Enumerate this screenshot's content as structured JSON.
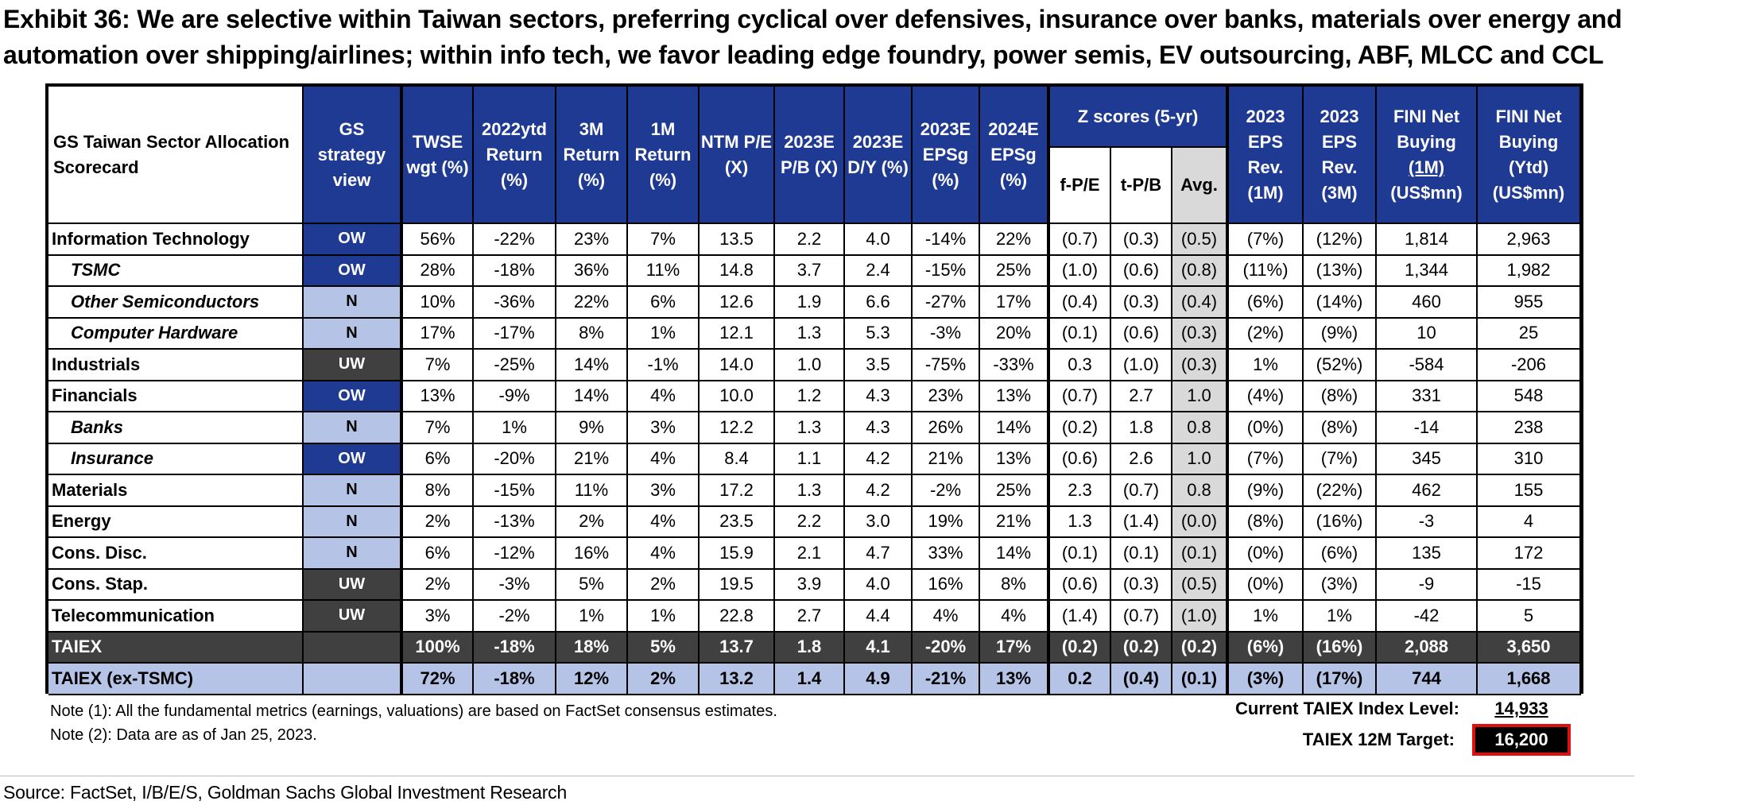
{
  "title": "Exhibit 36: We are selective within Taiwan sectors, preferring cyclical over defensives, insurance over banks, materials over energy and automation over shipping/airlines; within info tech, we favor leading edge foundry, power semis, EV outsourcing, ABF, MLCC and CCL",
  "header": {
    "scorecard": "GS Taiwan Sector Allocation Scorecard",
    "view": "GS strategy view",
    "twse": "TWSE wgt (%)",
    "ret_ytd": "2022ytd Return (%)",
    "ret_3m": "3M Return (%)",
    "ret_1m": "1M Return (%)",
    "pe": "NTM P/E (X)",
    "pb": "2023E P/B (X)",
    "dy": "2023E D/Y (%)",
    "epsg23": "2023E EPSg (%)",
    "epsg24": "2024E EPSg (%)",
    "zscores": "Z scores (5-yr)",
    "z_fpe": "f-P/E",
    "z_tpb": "t-P/B",
    "z_avg": "Avg.",
    "rev1m": "2023 EPS Rev. (1M)",
    "rev3m": "2023 EPS Rev. (3M)",
    "fini1m_a": "FINI Net Buying",
    "fini1m_u": "(1M)",
    "fini1m_b": "(US$mn)",
    "finiytd": "FINI Net Buying (Ytd) (US$mn)"
  },
  "rows": [
    {
      "name": "Information Technology",
      "sub": false,
      "view": "OW",
      "twse": "56%",
      "ytd": "-22%",
      "m3": "23%",
      "m1": "7%",
      "pe": "13.5",
      "pb": "2.2",
      "dy": "4.0",
      "e23": "-14%",
      "e24": "22%",
      "fpe": "(0.7)",
      "tpb": "(0.3)",
      "avg": "(0.5)",
      "r1": "(7%)",
      "r3": "(12%)",
      "f1": "1,814",
      "fy": "2,963"
    },
    {
      "name": "TSMC",
      "sub": true,
      "view": "OW",
      "twse": "28%",
      "ytd": "-18%",
      "m3": "36%",
      "m1": "11%",
      "pe": "14.8",
      "pb": "3.7",
      "dy": "2.4",
      "e23": "-15%",
      "e24": "25%",
      "fpe": "(1.0)",
      "tpb": "(0.6)",
      "avg": "(0.8)",
      "r1": "(11%)",
      "r3": "(13%)",
      "f1": "1,344",
      "fy": "1,982"
    },
    {
      "name": "Other Semiconductors",
      "sub": true,
      "view": "N",
      "twse": "10%",
      "ytd": "-36%",
      "m3": "22%",
      "m1": "6%",
      "pe": "12.6",
      "pb": "1.9",
      "dy": "6.6",
      "e23": "-27%",
      "e24": "17%",
      "fpe": "(0.4)",
      "tpb": "(0.3)",
      "avg": "(0.4)",
      "r1": "(6%)",
      "r3": "(14%)",
      "f1": "460",
      "fy": "955"
    },
    {
      "name": "Computer Hardware",
      "sub": true,
      "view": "N",
      "twse": "17%",
      "ytd": "-17%",
      "m3": "8%",
      "m1": "1%",
      "pe": "12.1",
      "pb": "1.3",
      "dy": "5.3",
      "e23": "-3%",
      "e24": "20%",
      "fpe": "(0.1)",
      "tpb": "(0.6)",
      "avg": "(0.3)",
      "r1": "(2%)",
      "r3": "(9%)",
      "f1": "10",
      "fy": "25"
    },
    {
      "name": "Industrials",
      "sub": false,
      "view": "UW",
      "twse": "7%",
      "ytd": "-25%",
      "m3": "14%",
      "m1": "-1%",
      "pe": "14.0",
      "pb": "1.0",
      "dy": "3.5",
      "e23": "-75%",
      "e24": "-33%",
      "fpe": "0.3",
      "tpb": "(1.0)",
      "avg": "(0.3)",
      "r1": "1%",
      "r3": "(52%)",
      "f1": "-584",
      "fy": "-206"
    },
    {
      "name": "Financials",
      "sub": false,
      "view": "OW",
      "twse": "13%",
      "ytd": "-9%",
      "m3": "14%",
      "m1": "4%",
      "pe": "10.0",
      "pb": "1.2",
      "dy": "4.3",
      "e23": "23%",
      "e24": "13%",
      "fpe": "(0.7)",
      "tpb": "2.7",
      "avg": "1.0",
      "r1": "(4%)",
      "r3": "(8%)",
      "f1": "331",
      "fy": "548"
    },
    {
      "name": "Banks",
      "sub": true,
      "view": "N",
      "twse": "7%",
      "ytd": "1%",
      "m3": "9%",
      "m1": "3%",
      "pe": "12.2",
      "pb": "1.3",
      "dy": "4.3",
      "e23": "26%",
      "e24": "14%",
      "fpe": "(0.2)",
      "tpb": "1.8",
      "avg": "0.8",
      "r1": "(0%)",
      "r3": "(8%)",
      "f1": "-14",
      "fy": "238"
    },
    {
      "name": "Insurance",
      "sub": true,
      "view": "OW",
      "twse": "6%",
      "ytd": "-20%",
      "m3": "21%",
      "m1": "4%",
      "pe": "8.4",
      "pb": "1.1",
      "dy": "4.2",
      "e23": "21%",
      "e24": "13%",
      "fpe": "(0.6)",
      "tpb": "2.6",
      "avg": "1.0",
      "r1": "(7%)",
      "r3": "(7%)",
      "f1": "345",
      "fy": "310"
    },
    {
      "name": "Materials",
      "sub": false,
      "view": "N",
      "twse": "8%",
      "ytd": "-15%",
      "m3": "11%",
      "m1": "3%",
      "pe": "17.2",
      "pb": "1.3",
      "dy": "4.2",
      "e23": "-2%",
      "e24": "25%",
      "fpe": "2.3",
      "tpb": "(0.7)",
      "avg": "0.8",
      "r1": "(9%)",
      "r3": "(22%)",
      "f1": "462",
      "fy": "155"
    },
    {
      "name": "Energy",
      "sub": false,
      "view": "N",
      "twse": "2%",
      "ytd": "-13%",
      "m3": "2%",
      "m1": "4%",
      "pe": "23.5",
      "pb": "2.2",
      "dy": "3.0",
      "e23": "19%",
      "e24": "21%",
      "fpe": "1.3",
      "tpb": "(1.4)",
      "avg": "(0.0)",
      "r1": "(8%)",
      "r3": "(16%)",
      "f1": "-3",
      "fy": "4"
    },
    {
      "name": "Cons. Disc.",
      "sub": false,
      "view": "N",
      "twse": "6%",
      "ytd": "-12%",
      "m3": "16%",
      "m1": "4%",
      "pe": "15.9",
      "pb": "2.1",
      "dy": "4.7",
      "e23": "33%",
      "e24": "14%",
      "fpe": "(0.1)",
      "tpb": "(0.1)",
      "avg": "(0.1)",
      "r1": "(0%)",
      "r3": "(6%)",
      "f1": "135",
      "fy": "172"
    },
    {
      "name": "Cons. Stap.",
      "sub": false,
      "view": "UW",
      "twse": "2%",
      "ytd": "-3%",
      "m3": "5%",
      "m1": "2%",
      "pe": "19.5",
      "pb": "3.9",
      "dy": "4.0",
      "e23": "16%",
      "e24": "8%",
      "fpe": "(0.6)",
      "tpb": "(0.3)",
      "avg": "(0.5)",
      "r1": "(0%)",
      "r3": "(3%)",
      "f1": "-9",
      "fy": "-15"
    },
    {
      "name": "Telecommunication",
      "sub": false,
      "view": "UW",
      "twse": "3%",
      "ytd": "-2%",
      "m3": "1%",
      "m1": "1%",
      "pe": "22.8",
      "pb": "2.7",
      "dy": "4.4",
      "e23": "4%",
      "e24": "4%",
      "fpe": "(1.4)",
      "tpb": "(0.7)",
      "avg": "(1.0)",
      "r1": "1%",
      "r3": "1%",
      "f1": "-42",
      "fy": "5"
    },
    {
      "name": "TAIEX",
      "sub": false,
      "view": "",
      "twse": "100%",
      "ytd": "-18%",
      "m3": "18%",
      "m1": "5%",
      "pe": "13.7",
      "pb": "1.8",
      "dy": "4.1",
      "e23": "-20%",
      "e24": "17%",
      "fpe": "(0.2)",
      "tpb": "(0.2)",
      "avg": "(0.2)",
      "r1": "(6%)",
      "r3": "(16%)",
      "f1": "2,088",
      "fy": "3,650"
    },
    {
      "name": "TAIEX (ex-TSMC)",
      "sub": false,
      "view": "",
      "twse": "72%",
      "ytd": "-18%",
      "m3": "12%",
      "m1": "2%",
      "pe": "13.2",
      "pb": "1.4",
      "dy": "4.9",
      "e23": "-21%",
      "e24": "13%",
      "fpe": "0.2",
      "tpb": "(0.4)",
      "avg": "(0.1)",
      "r1": "(3%)",
      "r3": "(17%)",
      "f1": "744",
      "fy": "1,668"
    }
  ],
  "notes": {
    "note1": "Note (1): All the fundamental metrics (earnings, valuations) are based on FactSet consensus estimates.",
    "note2": "Note (2): Data are as of Jan 25, 2023."
  },
  "index_level": {
    "label": "Current TAIEX Index Level:",
    "value": "14,933"
  },
  "target": {
    "label": "TAIEX 12M Target:",
    "value": "16,200"
  },
  "colors": {
    "ow": "#1f3a93",
    "n": "#b4c3e6",
    "uw": "#404040",
    "target_border": "#e01010"
  },
  "source": "Source: FactSet, I/B/E/S, Goldman Sachs Global Investment Research"
}
